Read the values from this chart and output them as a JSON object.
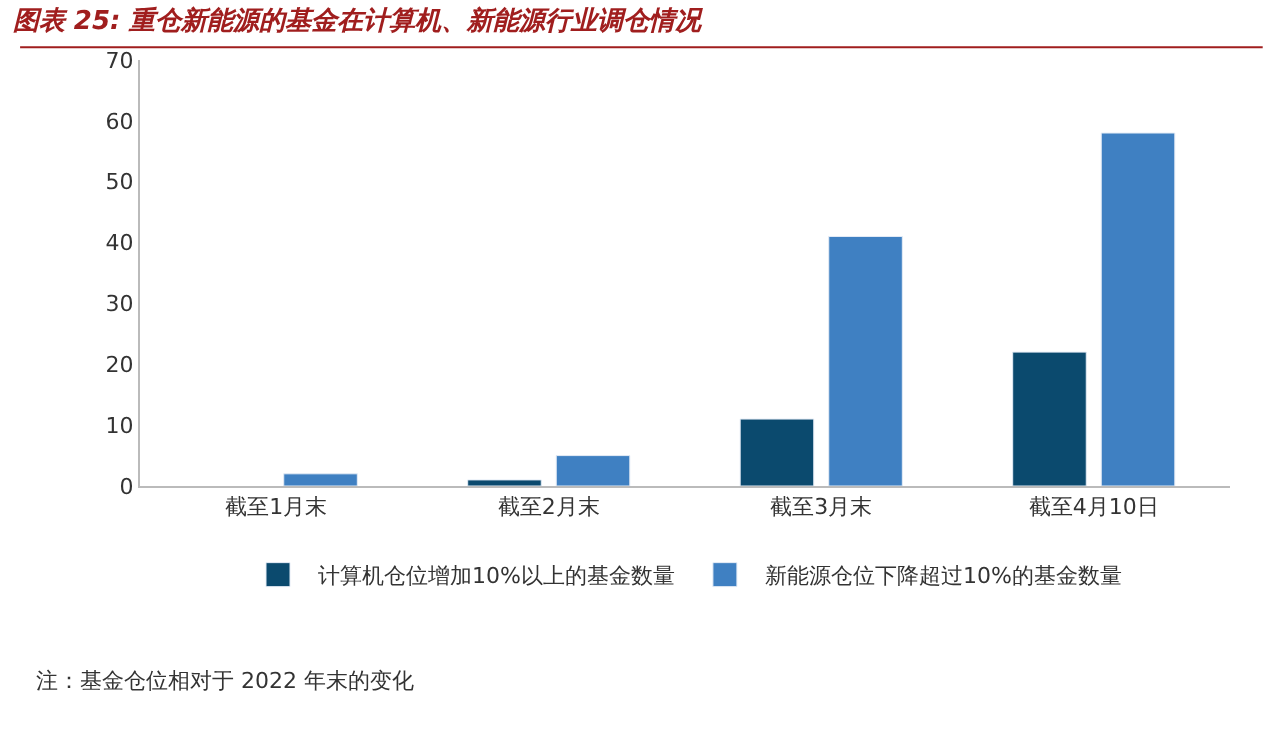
{
  "chart_data": {
    "type": "bar",
    "title": "图表 25: 重仓新能源的基金在计算机、新能源行业调仓情况",
    "categories": [
      "截至1月末",
      "截至2月末",
      "截至3月末",
      "截至4月10日"
    ],
    "series": [
      {
        "name": "计算机仓位增加10%以上的基金数量",
        "color": "#0b4a6e",
        "values": [
          null,
          1,
          11,
          22
        ]
      },
      {
        "name": "新能源仓位下降超过10%的基金数量",
        "color": "#3f80c2",
        "values": [
          2,
          5,
          41,
          58
        ]
      }
    ],
    "ylim": [
      0,
      70
    ],
    "yticks": [
      0,
      10,
      20,
      30,
      40,
      50,
      60,
      70
    ],
    "legend": "bottom",
    "annotations": [
      "注：基金仓位相对于 2022 年末的变化"
    ]
  }
}
